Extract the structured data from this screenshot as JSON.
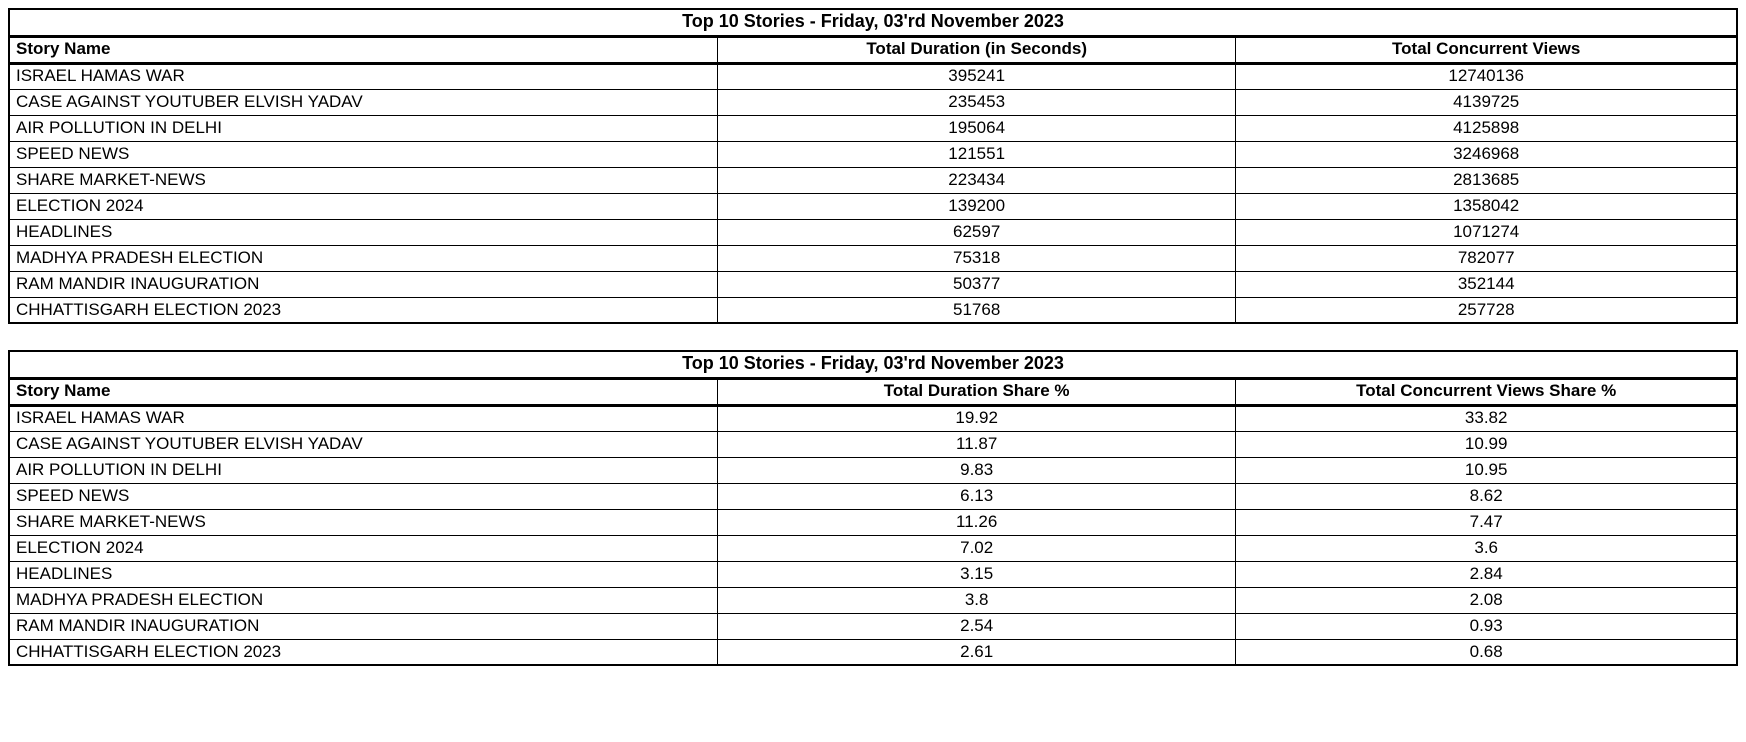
{
  "colors": {
    "background": "#ffffff",
    "text": "#000000",
    "border": "#000000"
  },
  "tables": [
    {
      "title": "Top 10 Stories - Friday, 03'rd November 2023",
      "columns": [
        "Story Name",
        "Total Duration (in Seconds)",
        "Total Concurrent Views"
      ],
      "rows": [
        [
          "ISRAEL HAMAS WAR",
          "395241",
          "12740136"
        ],
        [
          "CASE AGAINST YOUTUBER ELVISH YADAV",
          "235453",
          "4139725"
        ],
        [
          "AIR POLLUTION IN DELHI",
          "195064",
          "4125898"
        ],
        [
          "SPEED NEWS",
          "121551",
          "3246968"
        ],
        [
          "SHARE MARKET-NEWS",
          "223434",
          "2813685"
        ],
        [
          "ELECTION 2024",
          "139200",
          "1358042"
        ],
        [
          "HEADLINES",
          "62597",
          "1071274"
        ],
        [
          "MADHYA PRADESH ELECTION",
          "75318",
          "782077"
        ],
        [
          "RAM MANDIR INAUGURATION",
          "50377",
          "352144"
        ],
        [
          "CHHATTISGARH ELECTION 2023",
          "51768",
          "257728"
        ]
      ]
    },
    {
      "title": "Top 10 Stories - Friday, 03'rd November 2023",
      "columns": [
        "Story Name",
        "Total Duration Share %",
        "Total Concurrent Views Share %"
      ],
      "rows": [
        [
          "ISRAEL HAMAS WAR",
          "19.92",
          "33.82"
        ],
        [
          "CASE AGAINST YOUTUBER ELVISH YADAV",
          "11.87",
          "10.99"
        ],
        [
          "AIR POLLUTION IN DELHI",
          "9.83",
          "10.95"
        ],
        [
          "SPEED NEWS",
          "6.13",
          "8.62"
        ],
        [
          "SHARE MARKET-NEWS",
          "11.26",
          "7.47"
        ],
        [
          "ELECTION 2024",
          "7.02",
          "3.6"
        ],
        [
          "HEADLINES",
          "3.15",
          "2.84"
        ],
        [
          "MADHYA PRADESH ELECTION",
          "3.8",
          "2.08"
        ],
        [
          "RAM MANDIR INAUGURATION",
          "2.54",
          "0.93"
        ],
        [
          "CHHATTISGARH ELECTION 2023",
          "2.61",
          "0.68"
        ]
      ]
    }
  ]
}
